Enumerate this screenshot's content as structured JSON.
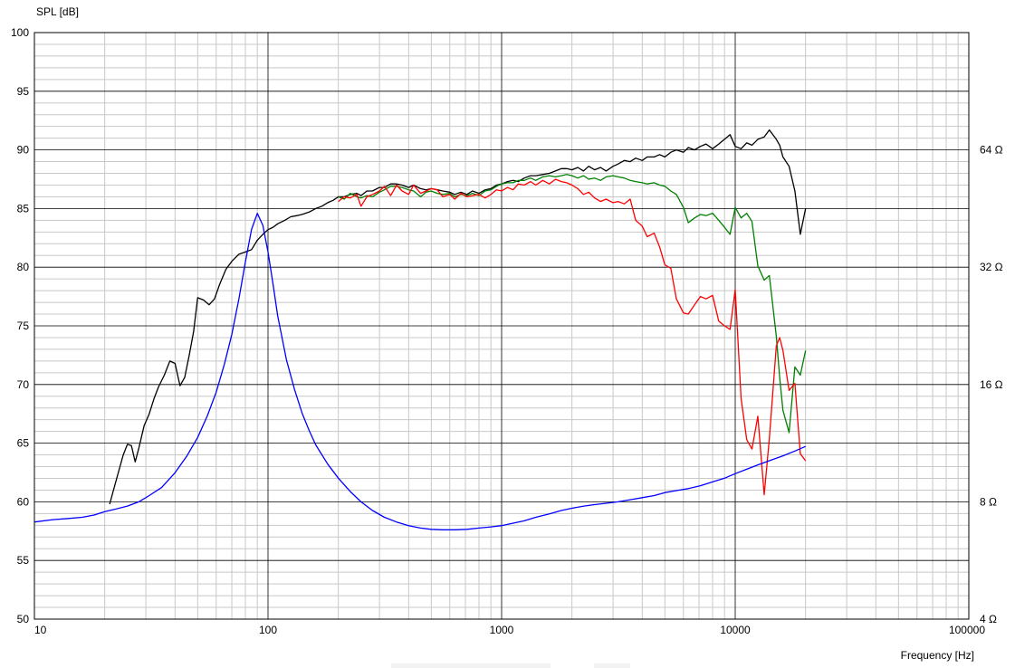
{
  "chart_data": {
    "type": "line",
    "title": "",
    "ylabel": "SPL [dB]",
    "xlabel": "Frequency [Hz]",
    "xscale": "log",
    "xlim": [
      10,
      100000
    ],
    "ylim": [
      50,
      100
    ],
    "y_ticks": [
      50,
      55,
      60,
      65,
      70,
      75,
      80,
      85,
      90,
      95,
      100
    ],
    "x_ticks": [
      {
        "value": 10,
        "label": "10"
      },
      {
        "value": 100,
        "label": "100"
      },
      {
        "value": 1000,
        "label": "1000"
      },
      {
        "value": 10000,
        "label": "10000"
      },
      {
        "value": 100000,
        "label": "100000"
      }
    ],
    "y2_ticks": [
      {
        "value": 64,
        "label": "64 Ω"
      },
      {
        "value": 32,
        "label": "32 Ω"
      },
      {
        "value": 16,
        "label": "16 Ω"
      },
      {
        "value": 8,
        "label": "8 Ω"
      },
      {
        "value": 4,
        "label": "4 Ω"
      }
    ],
    "y2_scale": "log2",
    "y2_ref": {
      "ohm": 8,
      "db": 60,
      "db_per_octave": 10
    },
    "grid": true,
    "legend": "none",
    "series": [
      {
        "color": "#000000",
        "axis": "left",
        "x": [
          21,
          22.5,
          24,
          25,
          26,
          27,
          28,
          29.5,
          31,
          32.5,
          34,
          36,
          38,
          40,
          42,
          44,
          46,
          48,
          50,
          53,
          56,
          59,
          62,
          66,
          70,
          75,
          80,
          85,
          90,
          95,
          100,
          105,
          110,
          118,
          125,
          133,
          140,
          150,
          160,
          170,
          180,
          190,
          200,
          212,
          225,
          240,
          250,
          265,
          280,
          300,
          315,
          335,
          355,
          375,
          400,
          420,
          450,
          475,
          500,
          530,
          560,
          600,
          630,
          670,
          710,
          750,
          800,
          850,
          900,
          950,
          1000,
          1060,
          1120,
          1180,
          1250,
          1330,
          1400,
          1500,
          1600,
          1700,
          1800,
          1900,
          2000,
          2120,
          2240,
          2360,
          2500,
          2650,
          2800,
          3000,
          3150,
          3350,
          3550,
          3750,
          4000,
          4200,
          4500,
          4750,
          5000,
          5300,
          5600,
          6000,
          6300,
          6700,
          7100,
          7500,
          8000,
          8500,
          9000,
          9500,
          10000,
          10600,
          11200,
          11800,
          12500,
          13300,
          14000,
          15000,
          15500,
          16000,
          17000,
          18000,
          19000,
          20000
        ],
        "y": [
          59.8,
          62.0,
          64.0,
          64.9,
          64.8,
          63.4,
          64.6,
          66.5,
          67.5,
          68.8,
          69.8,
          70.8,
          72.0,
          71.8,
          69.9,
          70.6,
          72.5,
          74.5,
          77.4,
          77.2,
          76.8,
          77.3,
          78.5,
          79.8,
          80.5,
          81.1,
          81.3,
          81.5,
          82.3,
          82.8,
          83.2,
          83.4,
          83.7,
          84.0,
          84.3,
          84.4,
          84.5,
          84.7,
          85.0,
          85.2,
          85.5,
          85.7,
          86.0,
          86.0,
          86.2,
          86.3,
          86.1,
          86.5,
          86.5,
          86.8,
          86.8,
          87.1,
          87.1,
          87.0,
          86.8,
          87.0,
          86.7,
          86.6,
          86.7,
          86.6,
          86.5,
          86.4,
          86.2,
          86.4,
          86.2,
          86.5,
          86.3,
          86.6,
          86.7,
          87.0,
          87.1,
          87.3,
          87.4,
          87.3,
          87.6,
          87.8,
          87.8,
          87.9,
          88.0,
          88.2,
          88.4,
          88.4,
          88.3,
          88.5,
          88.2,
          88.6,
          88.3,
          88.5,
          88.2,
          88.6,
          88.8,
          89.1,
          89.0,
          89.3,
          89.1,
          89.4,
          89.4,
          89.6,
          89.4,
          89.8,
          90.0,
          89.8,
          90.2,
          90.0,
          90.3,
          90.5,
          90.1,
          90.5,
          90.9,
          91.3,
          90.3,
          90.1,
          90.6,
          90.4,
          90.9,
          91.1,
          91.7,
          90.9,
          90.4,
          89.4,
          88.6,
          86.5,
          82.8,
          85.0
        ]
      },
      {
        "color": "#008000",
        "axis": "left",
        "x": [
          200,
          212,
          225,
          240,
          250,
          265,
          280,
          300,
          315,
          335,
          355,
          375,
          400,
          420,
          450,
          475,
          500,
          530,
          560,
          600,
          630,
          670,
          710,
          750,
          800,
          850,
          900,
          950,
          1000,
          1060,
          1120,
          1180,
          1250,
          1330,
          1400,
          1500,
          1600,
          1700,
          1800,
          1900,
          2000,
          2120,
          2240,
          2360,
          2500,
          2650,
          2800,
          3000,
          3150,
          3350,
          3550,
          3750,
          4000,
          4200,
          4500,
          4750,
          5000,
          5300,
          5600,
          6000,
          6300,
          6700,
          7100,
          7500,
          8000,
          8500,
          9000,
          9500,
          10000,
          10600,
          11200,
          11800,
          12500,
          13300,
          14000,
          15000,
          15500,
          16000,
          17000,
          18000,
          19000,
          20000
        ],
        "y": [
          86.0,
          85.8,
          86.3,
          86.0,
          85.9,
          86.1,
          86.0,
          86.4,
          86.6,
          86.9,
          86.9,
          86.8,
          86.6,
          86.5,
          86.0,
          86.4,
          86.5,
          86.3,
          86.2,
          86.3,
          86.0,
          86.2,
          86.1,
          86.3,
          86.1,
          86.5,
          86.6,
          86.9,
          87.1,
          87.2,
          87.2,
          87.4,
          87.4,
          87.6,
          87.4,
          87.7,
          87.8,
          87.7,
          87.8,
          87.9,
          87.8,
          87.6,
          87.8,
          87.5,
          87.6,
          87.4,
          87.7,
          87.8,
          87.7,
          87.6,
          87.4,
          87.3,
          87.2,
          87.1,
          87.2,
          87.0,
          86.9,
          86.5,
          86.2,
          85.1,
          83.8,
          84.2,
          84.5,
          84.4,
          84.6,
          84.0,
          83.4,
          82.8,
          85.1,
          84.2,
          84.6,
          83.9,
          80.1,
          78.9,
          79.3,
          74.1,
          70.6,
          67.8,
          65.9,
          71.5,
          70.8,
          72.9
        ]
      },
      {
        "color": "#ff0000",
        "axis": "left",
        "x": [
          200,
          212,
          225,
          240,
          250,
          265,
          280,
          300,
          315,
          335,
          355,
          375,
          400,
          420,
          450,
          475,
          500,
          530,
          560,
          600,
          630,
          670,
          710,
          750,
          800,
          850,
          900,
          950,
          1000,
          1060,
          1120,
          1180,
          1250,
          1330,
          1400,
          1500,
          1600,
          1700,
          1800,
          1900,
          2000,
          2120,
          2240,
          2360,
          2500,
          2650,
          2800,
          3000,
          3150,
          3350,
          3550,
          3750,
          4000,
          4200,
          4500,
          4750,
          5000,
          5300,
          5600,
          6000,
          6300,
          6700,
          7100,
          7500,
          8000,
          8500,
          9000,
          9500,
          10000,
          10600,
          11200,
          11800,
          12500,
          13300,
          14000,
          15000,
          15500,
          16000,
          17000,
          18000,
          19000,
          20000
        ],
        "y": [
          85.6,
          86.0,
          85.9,
          86.2,
          85.2,
          86.0,
          86.2,
          86.5,
          86.9,
          86.1,
          87.0,
          86.5,
          86.2,
          87.0,
          86.3,
          86.5,
          86.7,
          86.6,
          86.0,
          86.2,
          85.8,
          86.3,
          86.0,
          86.1,
          86.2,
          85.9,
          86.2,
          86.6,
          86.5,
          86.8,
          86.6,
          87.1,
          87.0,
          87.3,
          87.0,
          87.4,
          87.1,
          87.5,
          87.3,
          87.2,
          87.0,
          86.7,
          86.2,
          86.4,
          85.9,
          85.6,
          85.8,
          85.5,
          85.6,
          85.4,
          85.8,
          84.0,
          83.5,
          82.6,
          82.9,
          81.7,
          80.2,
          79.9,
          77.3,
          76.1,
          76.0,
          76.8,
          77.5,
          77.3,
          77.6,
          75.4,
          75.0,
          74.7,
          78.1,
          68.8,
          65.3,
          64.5,
          67.3,
          60.6,
          65.4,
          73.3,
          74.0,
          72.9,
          69.5,
          70.1,
          64.1,
          63.5
        ]
      },
      {
        "color": "#0000ff",
        "axis": "right",
        "x": [
          10,
          12,
          14,
          16,
          18,
          20,
          22,
          25,
          28,
          31,
          35,
          40,
          45,
          50,
          55,
          60,
          65,
          70,
          75,
          80,
          85,
          90,
          95,
          100,
          105,
          110,
          120,
          130,
          140,
          150,
          160,
          180,
          200,
          225,
          250,
          280,
          315,
          355,
          400,
          450,
          500,
          560,
          630,
          710,
          800,
          900,
          1000,
          1120,
          1250,
          1400,
          1600,
          1800,
          2000,
          2250,
          2500,
          2800,
          3150,
          3550,
          4000,
          4500,
          5000,
          5600,
          6300,
          7100,
          8000,
          9000,
          10000,
          11200,
          12500,
          14000,
          16000,
          18000,
          20000
        ],
        "y": [
          7.1,
          7.2,
          7.25,
          7.3,
          7.4,
          7.55,
          7.65,
          7.8,
          8.0,
          8.3,
          8.7,
          9.5,
          10.5,
          11.7,
          13.3,
          15.3,
          18.0,
          21.5,
          26.5,
          33.0,
          40.0,
          44.0,
          41.0,
          35.0,
          29.0,
          24.0,
          18.5,
          15.5,
          13.5,
          12.2,
          11.2,
          10.0,
          9.2,
          8.5,
          8.0,
          7.6,
          7.3,
          7.1,
          6.95,
          6.85,
          6.8,
          6.78,
          6.78,
          6.8,
          6.85,
          6.9,
          6.95,
          7.05,
          7.15,
          7.3,
          7.45,
          7.6,
          7.7,
          7.8,
          7.87,
          7.93,
          8.0,
          8.1,
          8.2,
          8.3,
          8.45,
          8.55,
          8.65,
          8.8,
          9.0,
          9.2,
          9.45,
          9.7,
          9.95,
          10.2,
          10.5,
          10.8,
          11.1
        ]
      }
    ]
  }
}
